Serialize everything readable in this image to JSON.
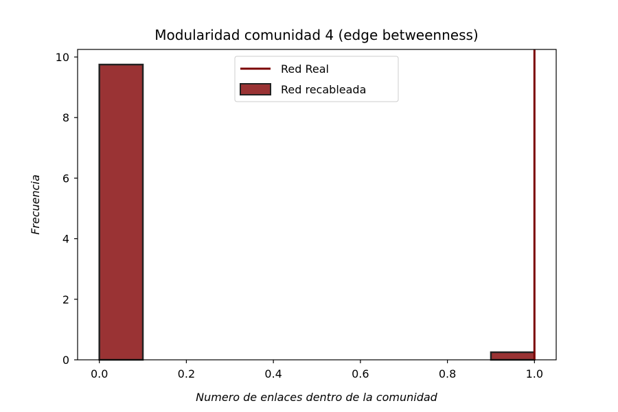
{
  "chart_data": {
    "type": "bar",
    "title": "Modularidad comunidad 4 (edge betweenness)",
    "xlabel": "Numero de enlaces dentro de la comunidad",
    "ylabel": "Frecuencia",
    "xlim": [
      -0.05,
      1.05
    ],
    "ylim": [
      0,
      10.25
    ],
    "xticks": [
      "0.0",
      "0.2",
      "0.4",
      "0.6",
      "0.8",
      "1.0"
    ],
    "yticks": [
      "0",
      "2",
      "4",
      "6",
      "8",
      "10"
    ],
    "histogram": {
      "name": "Red recableada",
      "bins": [
        {
          "start": 0.0,
          "end": 0.1,
          "value": 9.75
        },
        {
          "start": 0.9,
          "end": 1.0,
          "value": 0.25
        }
      ]
    },
    "reference_line": {
      "name": "Red Real",
      "x": 1.0
    },
    "legend": {
      "placement": "top-center",
      "entries": [
        "Red Real",
        "Red recableada"
      ]
    },
    "colors": {
      "bar_fill": "#9a3334",
      "bar_edge": "#222222",
      "line": "#7b0000"
    },
    "grid": false
  }
}
